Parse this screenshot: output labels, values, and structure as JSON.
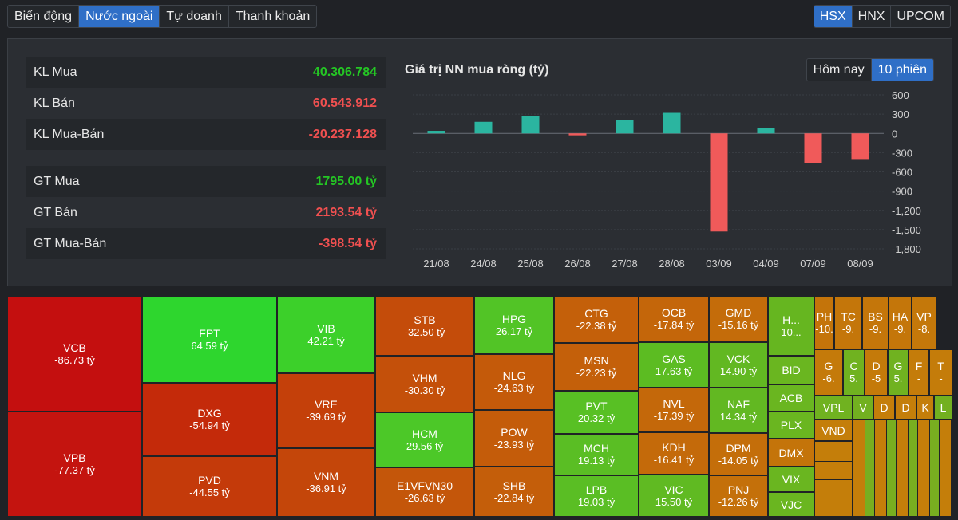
{
  "tabs": [
    "Biến động",
    "Nước ngoài",
    "Tự doanh",
    "Thanh khoản"
  ],
  "active_tab": 1,
  "exchanges": [
    "HSX",
    "HNX",
    "UPCOM"
  ],
  "active_exchange": 0,
  "stats": [
    {
      "label": "KL Mua",
      "value": "40.306.784",
      "tone": "pos"
    },
    {
      "label": "KL Bán",
      "value": "60.543.912",
      "tone": "neg"
    },
    {
      "label": "KL Mua-Bán",
      "value": "-20.237.128",
      "tone": "neg"
    },
    {
      "label": "GT Mua",
      "value": "1795.00 tỷ",
      "tone": "pos"
    },
    {
      "label": "GT Bán",
      "value": "2193.54 tỷ",
      "tone": "neg"
    },
    {
      "label": "GT Mua-Bán",
      "value": "-398.54 tỷ",
      "tone": "neg"
    }
  ],
  "chart": {
    "title": "Giá trị NN mua ròng (tỷ)",
    "range_options": [
      "Hôm nay",
      "10 phiên"
    ],
    "active_range": 1
  },
  "colors": {
    "positive": "#2bb5a0",
    "negative": "#f05a5a"
  },
  "chart_data": {
    "type": "bar",
    "categories": [
      "21/08",
      "24/08",
      "25/08",
      "26/08",
      "27/08",
      "28/08",
      "03/09",
      "04/09",
      "07/09",
      "08/09"
    ],
    "values": [
      40,
      180,
      270,
      -30,
      210,
      320,
      -1530,
      90,
      -460,
      -400
    ],
    "yticks": [
      600,
      300,
      0,
      -300,
      -600,
      -900,
      -1200,
      -1500,
      -1800
    ],
    "ytick_labels": [
      "600",
      "300",
      "0",
      "-300",
      "-600",
      "-900",
      "-1,200",
      "-1,500",
      "-1,800"
    ],
    "ylim": [
      -1800,
      600
    ],
    "grid": true
  },
  "treemap": [
    {
      "sym": "VCB",
      "val": "-86.73 tỷ",
      "c": "#c40f0f"
    },
    {
      "sym": "VPB",
      "val": "-77.37 tỷ",
      "c": "#c4140f"
    },
    {
      "sym": "FPT",
      "val": "64.59 tỷ",
      "c": "#2ed62e"
    },
    {
      "sym": "DXG",
      "val": "-54.94 tỷ",
      "c": "#c42a0a"
    },
    {
      "sym": "PVD",
      "val": "-44.55 tỷ",
      "c": "#c43a0a"
    },
    {
      "sym": "VIB",
      "val": "42.21 tỷ",
      "c": "#3cd02a"
    },
    {
      "sym": "VRE",
      "val": "-39.69 tỷ",
      "c": "#c4400a"
    },
    {
      "sym": "VNM",
      "val": "-36.91 tỷ",
      "c": "#c4460a"
    },
    {
      "sym": "STB",
      "val": "-32.50 tỷ",
      "c": "#c44c0a"
    },
    {
      "sym": "VHM",
      "val": "-30.30 tỷ",
      "c": "#c4500a"
    },
    {
      "sym": "HCM",
      "val": "29.56 tỷ",
      "c": "#4cc828"
    },
    {
      "sym": "E1VFVN30",
      "val": "-26.63 tỷ",
      "c": "#c4560a"
    },
    {
      "sym": "HPG",
      "val": "26.17 tỷ",
      "c": "#52c426"
    },
    {
      "sym": "NLG",
      "val": "-24.63 tỷ",
      "c": "#c45a0a"
    },
    {
      "sym": "POW",
      "val": "-23.93 tỷ",
      "c": "#c45c0a"
    },
    {
      "sym": "SHB",
      "val": "-22.84 tỷ",
      "c": "#c45e0a"
    },
    {
      "sym": "CTG",
      "val": "-22.38 tỷ",
      "c": "#c4600a"
    },
    {
      "sym": "MSN",
      "val": "-22.23 tỷ",
      "c": "#c4600a"
    },
    {
      "sym": "PVT",
      "val": "20.32 tỷ",
      "c": "#58c024"
    },
    {
      "sym": "MCH",
      "val": "19.13 tỷ",
      "c": "#5abe24"
    },
    {
      "sym": "LPB",
      "val": "19.03 tỷ",
      "c": "#5abe24"
    },
    {
      "sym": "OCB",
      "val": "-17.84 tỷ",
      "c": "#c4660a"
    },
    {
      "sym": "GAS",
      "val": "17.63 tỷ",
      "c": "#5cbc22"
    },
    {
      "sym": "NVL",
      "val": "-17.39 tỷ",
      "c": "#c4680a"
    },
    {
      "sym": "KDH",
      "val": "-16.41 tỷ",
      "c": "#c46a0a"
    },
    {
      "sym": "VIC",
      "val": "15.50 tỷ",
      "c": "#60ba22"
    },
    {
      "sym": "GMD",
      "val": "-15.16 tỷ",
      "c": "#c46c0a"
    },
    {
      "sym": "VCK",
      "val": "14.90 tỷ",
      "c": "#62b822"
    },
    {
      "sym": "NAF",
      "val": "14.34 tỷ",
      "c": "#62b822"
    },
    {
      "sym": "DPM",
      "val": "-14.05 tỷ",
      "c": "#c46e0a"
    },
    {
      "sym": "PNJ",
      "val": "-12.26 tỷ",
      "c": "#c4700a"
    },
    {
      "sym": "H...",
      "val": "10...",
      "c": "#66b620"
    },
    {
      "sym": "BID",
      "val": "",
      "c": "#6ab620"
    },
    {
      "sym": "ACB",
      "val": "",
      "c": "#6ab620"
    },
    {
      "sym": "PLX",
      "val": "",
      "c": "#6ab620"
    },
    {
      "sym": "DMX",
      "val": "",
      "c": "#c4740a"
    },
    {
      "sym": "VIX",
      "val": "",
      "c": "#6ab620"
    },
    {
      "sym": "VJC",
      "val": "",
      "c": "#6ab620"
    },
    {
      "sym": "PH",
      "val": "-10.",
      "c": "#c4740a"
    },
    {
      "sym": "TC",
      "val": "-9.",
      "c": "#c4760a"
    },
    {
      "sym": "BS",
      "val": "-9.",
      "c": "#c4760a"
    },
    {
      "sym": "HA",
      "val": "-9.",
      "c": "#c4760a"
    },
    {
      "sym": "VP",
      "val": "-8.",
      "c": "#c4780a"
    },
    {
      "sym": "G",
      "val": "-6.",
      "c": "#c47a0a"
    },
    {
      "sym": "C",
      "val": "5.",
      "c": "#70b220"
    },
    {
      "sym": "D",
      "val": "-5",
      "c": "#c47a0a"
    },
    {
      "sym": "G",
      "val": "5.",
      "c": "#70b220"
    },
    {
      "sym": "F",
      "val": "-",
      "c": "#c47c0a"
    },
    {
      "sym": "T",
      "val": "-",
      "c": "#c47c0a"
    },
    {
      "sym": "VPL",
      "val": "",
      "c": "#70b220"
    },
    {
      "sym": "V",
      "val": "",
      "c": "#72b020"
    },
    {
      "sym": "D",
      "val": "",
      "c": "#c47e0a"
    },
    {
      "sym": "D",
      "val": "",
      "c": "#c47e0a"
    },
    {
      "sym": "K",
      "val": "",
      "c": "#c47e0a"
    },
    {
      "sym": "L",
      "val": "",
      "c": "#72b020"
    },
    {
      "sym": "VND",
      "val": "",
      "c": "#c47e0a"
    }
  ]
}
